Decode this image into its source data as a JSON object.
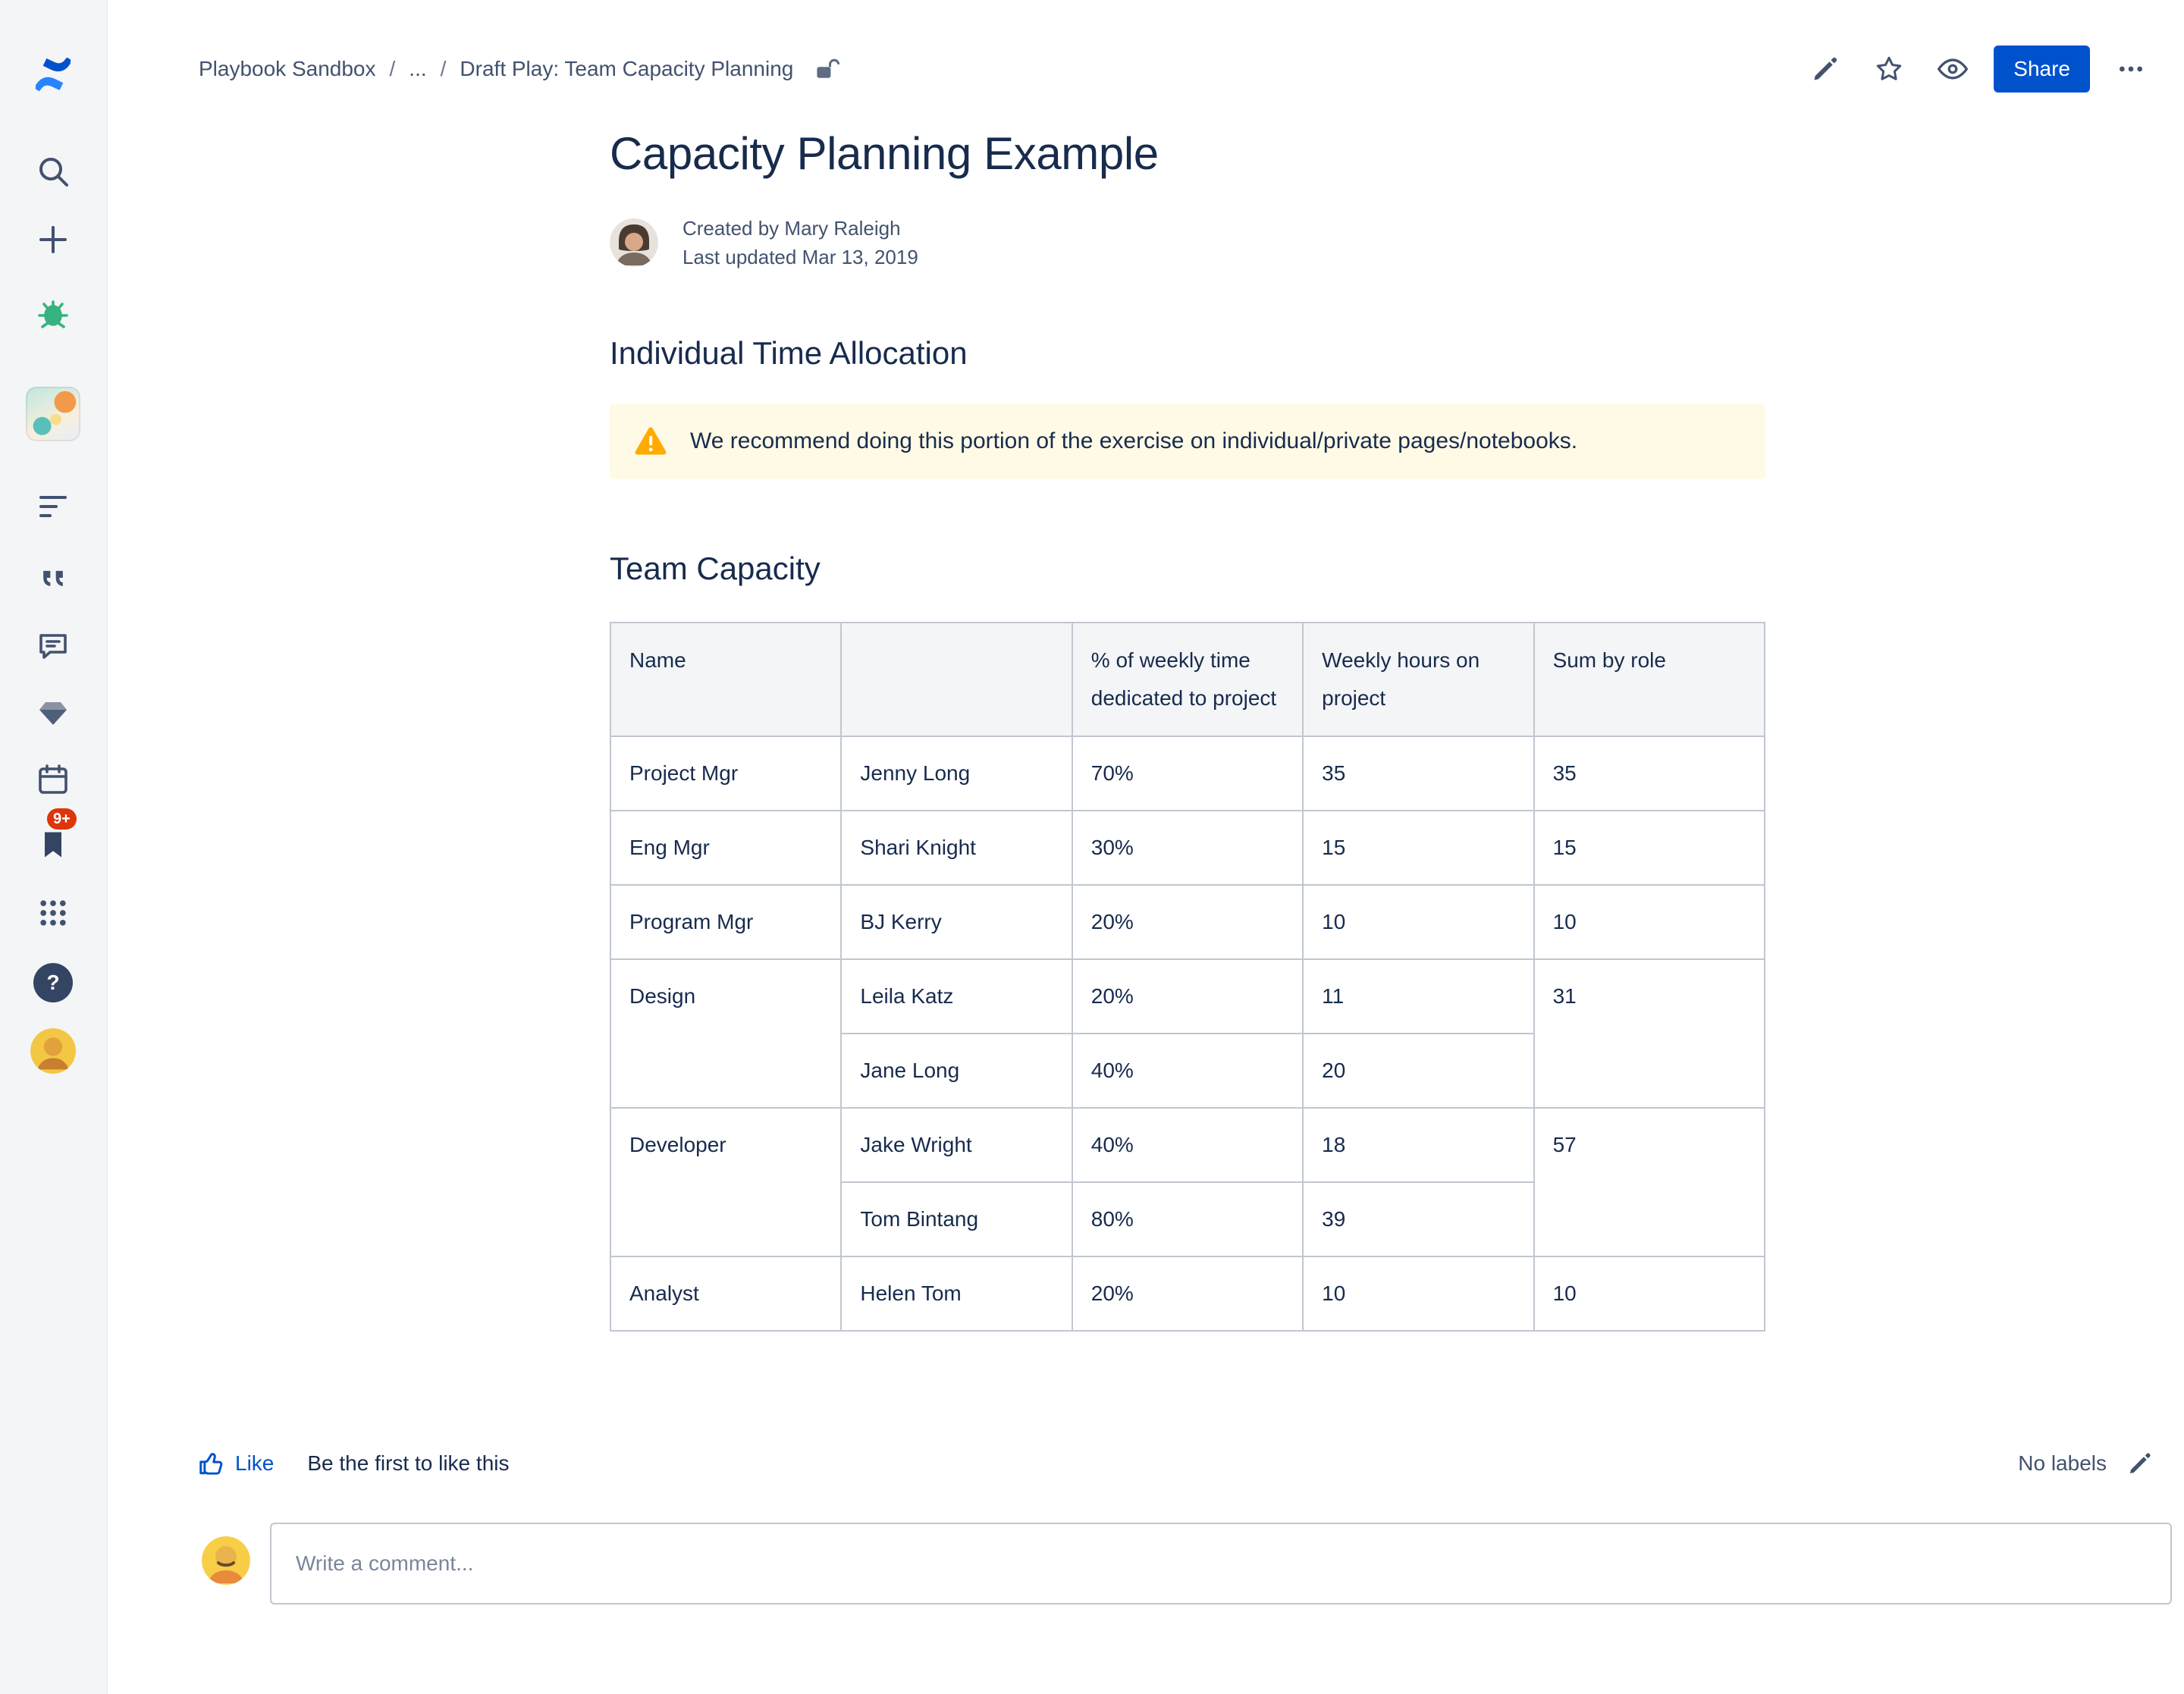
{
  "sidebar": {
    "notification_badge": "9+",
    "help_glyph": "?"
  },
  "breadcrumb": {
    "separator": "/",
    "items": [
      "Playbook Sandbox",
      "...",
      "Draft Play: Team Capacity Planning"
    ]
  },
  "toolbar": {
    "share_label": "Share"
  },
  "page": {
    "title": "Capacity Planning Example",
    "byline": {
      "created": "Created by Mary Raleigh",
      "updated": "Last updated Mar 13, 2019"
    },
    "sections": {
      "individual": "Individual Time Allocation",
      "team": "Team Capacity"
    },
    "warning_text": "We recommend doing this portion of the exercise on individual/private pages/notebooks."
  },
  "capacity_table": {
    "headers": [
      "Name",
      "",
      "% of weekly time dedicated to project",
      "Weekly hours on project",
      "Sum by role"
    ],
    "groups": [
      {
        "role": "Project Mgr",
        "sum": "35",
        "members": [
          {
            "name": "Jenny Long",
            "pct": "70%",
            "hours": "35"
          }
        ]
      },
      {
        "role": "Eng Mgr",
        "sum": "15",
        "members": [
          {
            "name": "Shari Knight",
            "pct": "30%",
            "hours": "15"
          }
        ]
      },
      {
        "role": "Program Mgr",
        "sum": "10",
        "members": [
          {
            "name": "BJ Kerry",
            "pct": "20%",
            "hours": "10"
          }
        ]
      },
      {
        "role": "Design",
        "sum": "31",
        "members": [
          {
            "name": "Leila Katz",
            "pct": "20%",
            "hours": "11"
          },
          {
            "name": "Jane Long",
            "pct": "40%",
            "hours": "20"
          }
        ]
      },
      {
        "role": "Developer",
        "sum": "57",
        "members": [
          {
            "name": "Jake Wright",
            "pct": "40%",
            "hours": "18"
          },
          {
            "name": "Tom Bintang",
            "pct": "80%",
            "hours": "39"
          }
        ]
      },
      {
        "role": "Analyst",
        "sum": "10",
        "members": [
          {
            "name": "Helen Tom",
            "pct": "20%",
            "hours": "10"
          }
        ]
      }
    ]
  },
  "footer": {
    "like_label": "Like",
    "like_hint": "Be the first to like this",
    "labels_text": "No labels"
  },
  "comment": {
    "placeholder": "Write a comment..."
  },
  "colors": {
    "accent_blue": "#0052CC",
    "warning_bg": "#FFFAE6",
    "warning_icon": "#FFAB00",
    "text_primary": "#172B4D",
    "text_secondary": "#42526E",
    "sidebar_bg": "#F4F5F7",
    "table_border": "#C1C7D0",
    "badge_red": "#DE350B"
  }
}
